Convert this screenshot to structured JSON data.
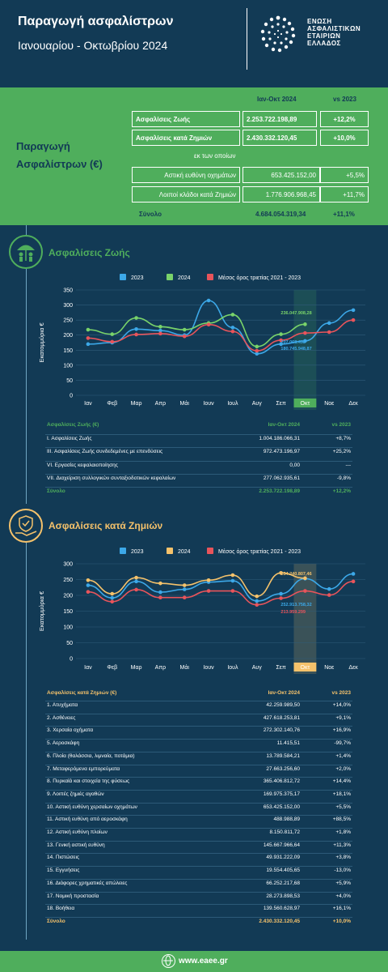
{
  "header": {
    "title": "Παραγωγή ασφαλίστρων",
    "subtitle": "Ιανουαρίου - Οκτωβρίου 2024",
    "org_lines": [
      "ΕΝΩΣΗ",
      "ΑΣΦΑΛΙΣΤΙΚΩΝ",
      "ΕΤΑΙΡΙΩΝ",
      "ΕΛΛΑΔΟΣ"
    ]
  },
  "summary": {
    "label_line1": "Παραγωγή",
    "label_line2": "Ασφαλίστρων (€)",
    "col_period": "Ιαν-Οκτ 2024",
    "col_vs": "vs 2023",
    "life_label": "Ασφαλίσεις Ζωής",
    "life_value": "2.253.722.198,89",
    "life_change": "+12,2%",
    "nonlife_label": "Ασφαλίσεις κατά Ζημιών",
    "nonlife_value": "2.430.332.120,45",
    "nonlife_change": "+10,0%",
    "of_which": "εκ των οποίων",
    "motor_label": "Αστική ευθύνη οχημάτων",
    "motor_value": "653.425.152,00",
    "motor_change": "+5,5%",
    "other_label": "Λοιποί κλάδοι κατά Ζημιών",
    "other_value": "1.776.906.968,45",
    "other_change": "+11,7%",
    "total_label": "Σύνολο",
    "total_value": "4.684.054.319,34",
    "total_change": "+11,1%"
  },
  "life_section": {
    "title": "Ασφαλίσεις Ζωής",
    "table_header": [
      "Ασφαλίσεις Ζωής (€)",
      "Ιαν-Οκτ 2024",
      "vs 2023"
    ],
    "rows": [
      [
        "I. Ασφαλίσεις  Ζωής",
        "1.004.186.066,31",
        "+8,7%"
      ],
      [
        "III. Ασφαλίσεις  Ζωής  συνδεδεμένες με επενδύσεις",
        "972.473.196,97",
        "+25,2%"
      ],
      [
        "VI. Εργασίες κεφαλαιοποίησης",
        "0,00",
        "---"
      ],
      [
        "VII. Διαχείριση συλλογικών συνταξιοδοτικών κεφαλαίων",
        "277.062.935,61",
        "-9,8%"
      ]
    ],
    "total": [
      "Σύνολο",
      "2.253.722.198,89",
      "+12,2%"
    ]
  },
  "nonlife_section": {
    "title": "Ασφαλίσεις κατά Ζημιών",
    "table_header": [
      "Ασφαλίσεις κατά Ζημιών (€)",
      "Ιαν-Οκτ 2024",
      "vs 2023"
    ],
    "rows": [
      [
        "1. Ατυχήματα",
        "42.259.989,50",
        "+14,0%"
      ],
      [
        "2. Ασθένειες",
        "427.618.253,81",
        "+9,1%"
      ],
      [
        "3. Χερσαία οχήματα",
        "272.302.140,76",
        "+16,9%"
      ],
      [
        "5. Αεροσκάφη",
        "11.415,51",
        "-99,7%"
      ],
      [
        "6. Πλοία (θαλάσσια, λιμναία, ποτάμια)",
        "13.789.584,21",
        "+1,4%"
      ],
      [
        "7. Μεταφερόμενα εμπορεύματα",
        "27.663.256,60",
        "+2,0%"
      ],
      [
        "8. Πυρκαϊά και στοιχεία της φύσεως",
        "365.406.812,72",
        "+14,4%"
      ],
      [
        "9. Λοιπές ζημιές αγαθών",
        "169.975.375,17",
        "+18,1%"
      ],
      [
        "10. Αστική ευθύνη χερσαίων οχημάτων",
        "653.425.152,00",
        "+5,5%"
      ],
      [
        "11. Αστική ευθύνη από αεροσκάφη",
        "488.988,89",
        "+88,5%"
      ],
      [
        "12. Αστική ευθύνη πλοίων",
        "8.150.811,72",
        "+1,8%"
      ],
      [
        "13. Γενική αστική ευθύνη",
        "145.667.966,64",
        "+11,3%"
      ],
      [
        "14. Πιστώσεις",
        "49.931.222,09",
        "+3,8%"
      ],
      [
        "15. Εγγυήσεις",
        "19.554.405,65",
        "-13,0%"
      ],
      [
        "16. Διάφορες χρηματικές απώλειες",
        "66.252.217,68",
        "+5,9%"
      ],
      [
        "17. Νομική προστασία",
        "28.273.898,53",
        "+4,0%"
      ],
      [
        "18. Βοήθεια",
        "139.560.628,97",
        "+16,1%"
      ]
    ],
    "total": [
      "Σύνολο",
      "2.430.332.120,45",
      "+10,0%"
    ]
  },
  "colors": {
    "navy": "#123a55",
    "green": "#4fae5c",
    "blue_2023": "#3ca8e8",
    "green_2024": "#79d36a",
    "orange_2024": "#f5c26b",
    "red_avg": "#e8545b"
  },
  "chart_data": [
    {
      "type": "line",
      "categories": [
        "Ιαν",
        "Φεβ",
        "Μαρ",
        "Απρ",
        "Μάι",
        "Ιουν",
        "Ιουλ",
        "Αυγ",
        "Σεπ",
        "Οκτ",
        "Νοε",
        "Δεκ"
      ],
      "ylabel": "Εκατομμύρια €",
      "ylim": [
        0,
        350
      ],
      "yticks": [
        0,
        50,
        100,
        150,
        200,
        250,
        300,
        350
      ],
      "highlight_category": "Οκτ",
      "highlight_color": "#4fae5c",
      "series": [
        {
          "name": "2023",
          "color": "#3ca8e8",
          "values": [
            170,
            175,
            220,
            215,
            200,
            315,
            225,
            138,
            170,
            180.7,
            240,
            283
          ]
        },
        {
          "name": "2024",
          "color": "#79d36a",
          "values": [
            218,
            203,
            257,
            228,
            218,
            240,
            268,
            162,
            203,
            236.0,
            null,
            null
          ]
        },
        {
          "name": "Μέσος όρος τριετίας 2021 - 2023",
          "color": "#e8545b",
          "values": [
            190,
            178,
            202,
            205,
            196,
            235,
            212,
            148,
            183,
            207.0,
            210,
            250
          ]
        }
      ],
      "annotations": [
        {
          "category": "Οκτ",
          "text": "236.047.908,28",
          "color": "#79d36a"
        },
        {
          "category": "Οκτ",
          "text": "207.068.498",
          "color": "#3ca8e8"
        },
        {
          "category": "Οκτ",
          "text": "180.745.948,87",
          "color": "#3ca8e8"
        }
      ]
    },
    {
      "type": "line",
      "categories": [
        "Ιαν",
        "Φεβ",
        "Μαρ",
        "Απρ",
        "Μάι",
        "Ιουν",
        "Ιουλ",
        "Αυγ",
        "Σεπ",
        "Οκτ",
        "Νοε",
        "Δεκ"
      ],
      "ylabel": "Εκατομμύρια €",
      "ylim": [
        0,
        300
      ],
      "yticks": [
        0,
        50,
        100,
        150,
        200,
        250,
        300
      ],
      "highlight_category": "Οκτ",
      "highlight_color": "#f5c26b",
      "series": [
        {
          "name": "2023",
          "color": "#3ca8e8",
          "values": [
            232,
            192,
            244,
            210,
            219,
            242,
            246,
            182,
            205,
            252.9,
            220,
            268
          ]
        },
        {
          "name": "2024",
          "color": "#f5c26b",
          "values": [
            248,
            205,
            256,
            238,
            232,
            248,
            264,
            197,
            271,
            254.2,
            null,
            null
          ]
        },
        {
          "name": "Μέσος όρος τριετίας 2021 - 2023",
          "color": "#e8545b",
          "values": [
            211,
            180,
            218,
            193,
            193,
            214,
            214,
            170,
            191,
            214.0,
            201,
            244
          ]
        }
      ],
      "annotations": [
        {
          "category": "Οκτ",
          "text": "254.240.807,46",
          "color": "#f5c26b"
        },
        {
          "category": "Οκτ",
          "text": "252.913.758,32",
          "color": "#3ca8e8"
        },
        {
          "category": "Οκτ",
          "text": "213.959.299",
          "color": "#e8545b"
        }
      ]
    }
  ]
}
